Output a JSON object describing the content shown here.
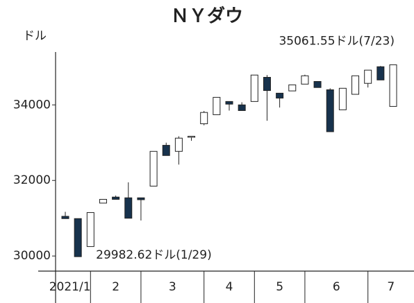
{
  "chart_data": {
    "type": "candlestick",
    "title": "ＮＹダウ",
    "y_unit": "ドル",
    "open": [
      31050,
      30990,
      30250,
      31400,
      31560,
      31540,
      31540,
      31850,
      32930,
      32770,
      33160,
      33500,
      33740,
      34090,
      34000,
      34090,
      34730,
      34310,
      34370,
      34550,
      34620,
      34400,
      33870,
      34280,
      34570,
      35010,
      33960
    ],
    "high": [
      31170,
      30990,
      31150,
      31500,
      31600,
      31950,
      31540,
      32770,
      33000,
      33170,
      33170,
      33840,
      34200,
      34090,
      34070,
      34790,
      34790,
      34310,
      34530,
      34800,
      34620,
      34440,
      34440,
      34770,
      34920,
      35030,
      35061.55
    ],
    "low": [
      30990,
      29982.62,
      30250,
      31400,
      31500,
      31000,
      30940,
      31850,
      32660,
      32420,
      33050,
      33460,
      33740,
      33850,
      33850,
      34090,
      33580,
      33930,
      34370,
      34550,
      34460,
      33290,
      33870,
      34280,
      34460,
      34660,
      33960
    ],
    "close": [
      30990,
      29982.62,
      31150,
      31500,
      31500,
      31000,
      31490,
      32770,
      32660,
      33120,
      33170,
      33800,
      34200,
      34020,
      33850,
      34790,
      34380,
      34180,
      34530,
      34770,
      34460,
      33290,
      34440,
      34770,
      34920,
      34660,
      35061.55
    ],
    "up_color": "#ffffff",
    "down_color": "#17324d",
    "month_labels": [
      "2021/1",
      "2",
      "3",
      "4",
      "5",
      "6",
      "7"
    ],
    "month_start_index": [
      0,
      2,
      6,
      11,
      15,
      19,
      24
    ],
    "ylim": [
      29600,
      35400
    ],
    "yticks": [
      30000,
      32000,
      34000
    ],
    "annotations": [
      {
        "text": "29982.62ドル(1/29)",
        "index": 1,
        "value": 29982.62
      },
      {
        "text": "35061.55ドル(7/23)",
        "index": 26,
        "value": 35061.55
      }
    ]
  }
}
